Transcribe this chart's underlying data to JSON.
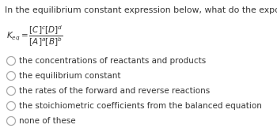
{
  "title": "In the equilibrium constant expression below, what do the exponents represent?",
  "options": [
    "the concentrations of reactants and products",
    "the equilibrium constant",
    "the rates of the forward and reverse reactions",
    "the stoichiometric coefficients from the balanced equation",
    "none of these"
  ],
  "bg_color": "#ffffff",
  "text_color": "#333333",
  "title_fontsize": 7.8,
  "option_fontsize": 7.5,
  "eq_fontsize": 7.5,
  "circle_color": "#aaaaaa"
}
